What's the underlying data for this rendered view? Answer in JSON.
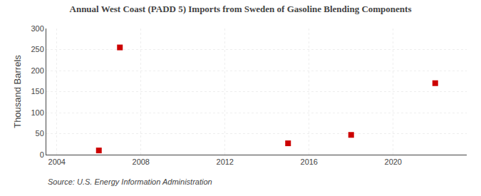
{
  "chart_data": {
    "type": "scatter",
    "title": "Annual West Coast (PADD 5) Imports from Sweden of Gasoline Blending Components",
    "ylabel": "Thousand Barrels",
    "annotations": [
      "Source: U.S. Energy Information Administration"
    ],
    "x": [
      2006,
      2007,
      2015,
      2018,
      2022
    ],
    "values": [
      10,
      255,
      27,
      47,
      170
    ],
    "color": "#cc0000",
    "marker": "square",
    "xlim": [
      2003.5,
      2023.5
    ],
    "xticks": [
      2004,
      2008,
      2012,
      2016,
      2020
    ],
    "ylim": [
      0,
      300
    ],
    "yticks": [
      0,
      50,
      100,
      150,
      200,
      250,
      300
    ],
    "grid": true
  }
}
